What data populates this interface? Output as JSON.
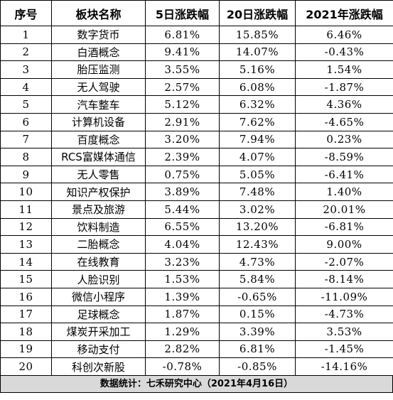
{
  "table": {
    "headers": [
      "序号",
      "板块名称",
      "5日涨跌幅",
      "20日涨跌幅",
      "2021年涨跌幅"
    ],
    "rows": [
      [
        "1",
        "数字货币",
        "6.81%",
        "15.85%",
        "6.46%"
      ],
      [
        "2",
        "白酒概念",
        "9.41%",
        "14.07%",
        "-0.43%"
      ],
      [
        "3",
        "胎压监测",
        "3.55%",
        "5.16%",
        "1.54%"
      ],
      [
        "4",
        "无人驾驶",
        "2.57%",
        "6.08%",
        "-1.87%"
      ],
      [
        "5",
        "汽车整车",
        "5.12%",
        "6.32%",
        "4.36%"
      ],
      [
        "6",
        "计算机设备",
        "2.91%",
        "7.62%",
        "-4.65%"
      ],
      [
        "7",
        "百度概念",
        "3.20%",
        "7.94%",
        "0.23%"
      ],
      [
        "8",
        "RCS富媒体通信",
        "2.39%",
        "4.07%",
        "-8.59%"
      ],
      [
        "9",
        "无人零售",
        "0.75%",
        "5.05%",
        "-6.41%"
      ],
      [
        "10",
        "知识产权保护",
        "3.89%",
        "7.48%",
        "1.40%"
      ],
      [
        "11",
        "景点及旅游",
        "5.44%",
        "3.02%",
        "20.01%"
      ],
      [
        "12",
        "饮料制造",
        "6.55%",
        "13.20%",
        "-6.81%"
      ],
      [
        "13",
        "二胎概念",
        "4.04%",
        "12.43%",
        "9.00%"
      ],
      [
        "14",
        "在线教育",
        "3.23%",
        "4.73%",
        "-2.07%"
      ],
      [
        "15",
        "人脸识别",
        "1.53%",
        "5.84%",
        "-8.14%"
      ],
      [
        "16",
        "微信小程序",
        "1.39%",
        "-0.65%",
        "-11.09%"
      ],
      [
        "17",
        "足球概念",
        "1.87%",
        "0.15%",
        "-4.73%"
      ],
      [
        "18",
        "煤炭开采加工",
        "1.29%",
        "3.39%",
        "3.53%"
      ],
      [
        "19",
        "移动支付",
        "2.82%",
        "6.81%",
        "-1.45%"
      ],
      [
        "20",
        "科创次新股",
        "-0.78%",
        "-0.85%",
        "-14.16%"
      ]
    ]
  },
  "footer": "数据统计：七禾研究中心（2021年4月16日）"
}
